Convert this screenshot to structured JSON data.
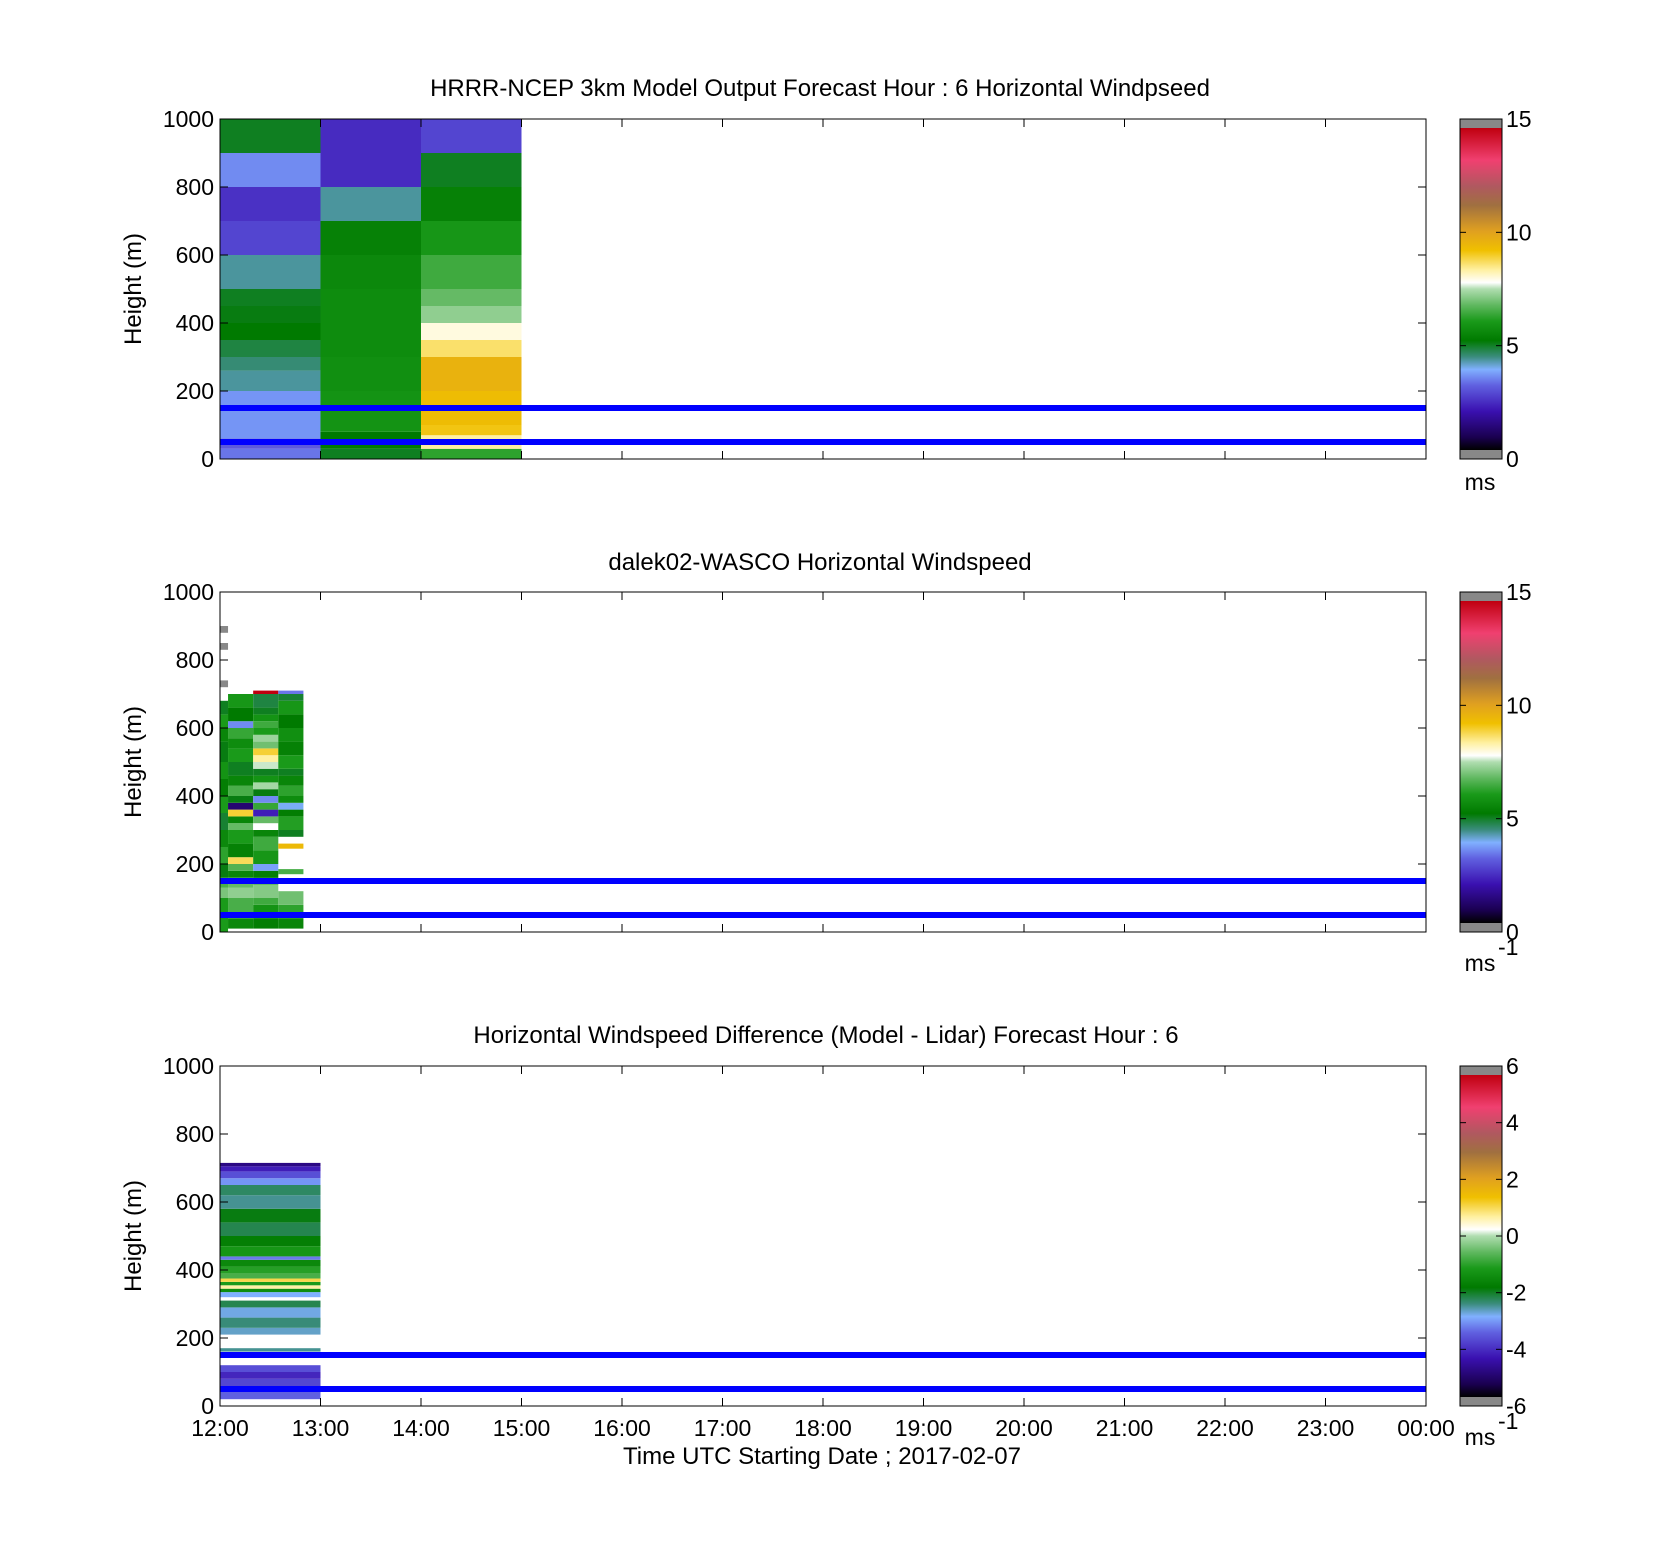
{
  "figure": {
    "xlabel": "Time UTC  Starting Date ; 2017-02-07",
    "x_ticks": [
      "12:00",
      "13:00",
      "14:00",
      "15:00",
      "16:00",
      "17:00",
      "18:00",
      "19:00",
      "20:00",
      "21:00",
      "22:00",
      "23:00",
      "00:00"
    ],
    "reference_lines_m": [
      50,
      150
    ],
    "reference_line_color": "#0000ff"
  },
  "chart_data": [
    {
      "type": "heatmap",
      "title": "HRRR-NCEP 3km Model Output   Forecast Hour : 6 Horizontal Windpseed",
      "ylabel": "Height (m)",
      "ylim": [
        0,
        1000
      ],
      "y_ticks": [
        0,
        200,
        400,
        600,
        800,
        1000
      ],
      "xlim_hours": [
        12,
        24
      ],
      "colorbar": {
        "ticks": [
          0,
          5,
          10,
          15
        ],
        "range": [
          0,
          15
        ],
        "unit": "ms",
        "unit_exp": ""
      },
      "columns": [
        {
          "x_start": 12,
          "x_end": 13,
          "cells": [
            {
              "y0": 0,
              "y1": 30,
              "value": 3.2
            },
            {
              "y0": 30,
              "y1": 60,
              "value": 2.9
            },
            {
              "y0": 60,
              "y1": 150,
              "value": 3.5
            },
            {
              "y0": 150,
              "y1": 200,
              "value": 3.5
            },
            {
              "y0": 200,
              "y1": 260,
              "value": 4.2
            },
            {
              "y0": 260,
              "y1": 300,
              "value": 4.4
            },
            {
              "y0": 300,
              "y1": 350,
              "value": 4.7
            },
            {
              "y0": 350,
              "y1": 400,
              "value": 5.1
            },
            {
              "y0": 400,
              "y1": 450,
              "value": 5.0
            },
            {
              "y0": 450,
              "y1": 500,
              "value": 4.9
            },
            {
              "y0": 500,
              "y1": 600,
              "value": 4.2
            },
            {
              "y0": 600,
              "y1": 700,
              "value": 2.6
            },
            {
              "y0": 700,
              "y1": 800,
              "value": 2.3
            },
            {
              "y0": 800,
              "y1": 900,
              "value": 3.4
            },
            {
              "y0": 900,
              "y1": 1000,
              "value": 4.9
            }
          ]
        },
        {
          "x_start": 13,
          "x_end": 14,
          "cells": [
            {
              "y0": 0,
              "y1": 30,
              "value": 4.9
            },
            {
              "y0": 30,
              "y1": 80,
              "value": 5.1
            },
            {
              "y0": 80,
              "y1": 200,
              "value": 5.8
            },
            {
              "y0": 200,
              "y1": 300,
              "value": 5.7
            },
            {
              "y0": 300,
              "y1": 500,
              "value": 5.6
            },
            {
              "y0": 500,
              "y1": 600,
              "value": 5.5
            },
            {
              "y0": 600,
              "y1": 700,
              "value": 5.3
            },
            {
              "y0": 700,
              "y1": 800,
              "value": 4.2
            },
            {
              "y0": 800,
              "y1": 1000,
              "value": 2.2
            }
          ]
        },
        {
          "x_start": 14,
          "x_end": 15,
          "cells": [
            {
              "y0": 0,
              "y1": 30,
              "value": 6.2
            },
            {
              "y0": 30,
              "y1": 70,
              "value": 8.4
            },
            {
              "y0": 70,
              "y1": 100,
              "value": 9.2
            },
            {
              "y0": 100,
              "y1": 200,
              "value": 9.4
            },
            {
              "y0": 200,
              "y1": 300,
              "value": 9.7
            },
            {
              "y0": 300,
              "y1": 350,
              "value": 8.7
            },
            {
              "y0": 350,
              "y1": 400,
              "value": 8.0
            },
            {
              "y0": 400,
              "y1": 450,
              "value": 7.2
            },
            {
              "y0": 450,
              "y1": 500,
              "value": 6.8
            },
            {
              "y0": 500,
              "y1": 600,
              "value": 6.4
            },
            {
              "y0": 600,
              "y1": 700,
              "value": 5.9
            },
            {
              "y0": 700,
              "y1": 800,
              "value": 5.3
            },
            {
              "y0": 800,
              "y1": 900,
              "value": 4.9
            },
            {
              "y0": 900,
              "y1": 1000,
              "value": 2.6
            }
          ]
        }
      ]
    },
    {
      "type": "heatmap",
      "title": "dalek02-WASCO  Horizontal Windspeed",
      "ylabel": "Height (m)",
      "ylim": [
        0,
        1000
      ],
      "y_ticks": [
        0,
        200,
        400,
        600,
        800,
        1000
      ],
      "xlim_hours": [
        12,
        24
      ],
      "colorbar": {
        "ticks": [
          0,
          5,
          10,
          15
        ],
        "range": [
          0,
          15
        ],
        "unit": "ms",
        "unit_exp": "-1"
      },
      "columns": [
        {
          "x_start": 12.0,
          "x_end": 12.08,
          "profile": [
            [
              0,
              100,
              6.0
            ],
            [
              100,
              130,
              7.0
            ],
            [
              130,
              160,
              6.5
            ],
            [
              160,
              200,
              5.0
            ],
            [
              200,
              250,
              6.2
            ],
            [
              250,
              300,
              5.5
            ],
            [
              300,
              350,
              4.8
            ],
            [
              350,
              400,
              6.0
            ],
            [
              400,
              450,
              5.2
            ],
            [
              450,
              500,
              5.8
            ],
            [
              500,
              560,
              5.0
            ],
            [
              560,
              600,
              5.4
            ],
            [
              600,
              640,
              6.0
            ],
            [
              640,
              680,
              4.9
            ],
            [
              720,
              740,
              16
            ],
            [
              830,
              850,
              16
            ],
            [
              880,
              900,
              16
            ]
          ]
        },
        {
          "x_start": 12.08,
          "x_end": 12.33,
          "profile": [
            [
              10,
              40,
              5.5
            ],
            [
              40,
              100,
              6.5
            ],
            [
              100,
              130,
              7.2
            ],
            [
              130,
              160,
              6.8
            ],
            [
              160,
              180,
              5.4
            ],
            [
              180,
              200,
              6.6
            ],
            [
              200,
              220,
              8.8
            ],
            [
              220,
              260,
              5.3
            ],
            [
              260,
              300,
              6.0
            ],
            [
              300,
              320,
              6.8
            ],
            [
              320,
              340,
              5.4
            ],
            [
              340,
              360,
              9.0
            ],
            [
              360,
              380,
              1.0
            ],
            [
              380,
              400,
              5.0
            ],
            [
              400,
              430,
              6.5
            ],
            [
              430,
              460,
              5.4
            ],
            [
              460,
              500,
              4.9
            ],
            [
              500,
              540,
              6.0
            ],
            [
              540,
              570,
              5.6
            ],
            [
              570,
              600,
              6.3
            ],
            [
              600,
              620,
              3.4
            ],
            [
              620,
              660,
              5.1
            ],
            [
              660,
              700,
              5.9
            ]
          ]
        },
        {
          "x_start": 12.33,
          "x_end": 12.58,
          "profile": [
            [
              10,
              40,
              5.2
            ],
            [
              40,
              80,
              5.8
            ],
            [
              80,
              100,
              6.4
            ],
            [
              100,
              140,
              7.1
            ],
            [
              140,
              160,
              6.0
            ],
            [
              160,
              180,
              5.2
            ],
            [
              180,
              200,
              3.6
            ],
            [
              200,
              240,
              5.9
            ],
            [
              240,
              280,
              6.4
            ],
            [
              280,
              300,
              5.4
            ],
            [
              300,
              320,
              7.8
            ],
            [
              320,
              340,
              6.8
            ],
            [
              340,
              360,
              2.0
            ],
            [
              360,
              380,
              6.3
            ],
            [
              380,
              400,
              3.4
            ],
            [
              400,
              420,
              5.0
            ],
            [
              420,
              440,
              7.4
            ],
            [
              440,
              460,
              5.8
            ],
            [
              460,
              480,
              4.9
            ],
            [
              480,
              500,
              7.6
            ],
            [
              500,
              520,
              8.4
            ],
            [
              520,
              540,
              9.0
            ],
            [
              540,
              560,
              6.9
            ],
            [
              560,
              580,
              7.3
            ],
            [
              580,
              600,
              6.0
            ],
            [
              600,
              620,
              6.4
            ],
            [
              620,
              640,
              5.8
            ],
            [
              640,
              660,
              4.9
            ],
            [
              660,
              700,
              4.7
            ],
            [
              700,
              710,
              15
            ]
          ]
        },
        {
          "x_start": 12.58,
          "x_end": 12.83,
          "profile": [
            [
              10,
              40,
              5.4
            ],
            [
              40,
              80,
              6.2
            ],
            [
              80,
              120,
              6.9
            ],
            [
              170,
              185,
              6.5
            ],
            [
              245,
              260,
              9.5
            ],
            [
              280,
              300,
              4.9
            ],
            [
              300,
              340,
              6.1
            ],
            [
              340,
              360,
              5.2
            ],
            [
              360,
              380,
              3.8
            ],
            [
              380,
              400,
              5.6
            ],
            [
              400,
              430,
              6.2
            ],
            [
              430,
              460,
              5.4
            ],
            [
              460,
              480,
              4.9
            ],
            [
              480,
              520,
              6.0
            ],
            [
              520,
              560,
              5.3
            ],
            [
              560,
              600,
              5.7
            ],
            [
              600,
              640,
              5.1
            ],
            [
              640,
              680,
              5.9
            ],
            [
              680,
              700,
              4.8
            ],
            [
              700,
              710,
              3.2
            ]
          ]
        }
      ]
    },
    {
      "type": "heatmap",
      "title": "Horizontal Windspeed Difference (Model - Lidar) Forecast Hour : 6",
      "ylabel": "Height (m)",
      "ylim": [
        0,
        1000
      ],
      "y_ticks": [
        0,
        200,
        400,
        600,
        800,
        1000
      ],
      "xlim_hours": [
        12,
        24
      ],
      "colorbar": {
        "ticks": [
          -6,
          -4,
          -2,
          0,
          2,
          4,
          6
        ],
        "range": [
          -6,
          6
        ],
        "unit": "ms",
        "unit_exp": "-1"
      },
      "columns": [
        {
          "x_start": 12,
          "x_end": 13,
          "profile": [
            [
              20,
              50,
              -3.6
            ],
            [
              50,
              80,
              -3.9
            ],
            [
              80,
              100,
              -4.3
            ],
            [
              100,
              120,
              -3.8
            ],
            [
              160,
              170,
              -2.6
            ],
            [
              210,
              230,
              -2.8
            ],
            [
              230,
              260,
              -2.5
            ],
            [
              260,
              290,
              -2.9
            ],
            [
              290,
              310,
              -2.3
            ],
            [
              320,
              335,
              -3.0
            ],
            [
              335,
              345,
              -1.5
            ],
            [
              345,
              355,
              0.7
            ],
            [
              355,
              365,
              -1.2
            ],
            [
              365,
              375,
              1.1
            ],
            [
              375,
              390,
              -0.8
            ],
            [
              390,
              410,
              -1.1
            ],
            [
              410,
              430,
              -1.6
            ],
            [
              430,
              440,
              -3.4
            ],
            [
              440,
              470,
              -1.3
            ],
            [
              470,
              500,
              -1.8
            ],
            [
              500,
              540,
              -2.3
            ],
            [
              540,
              580,
              -2.0
            ],
            [
              580,
              620,
              -2.6
            ],
            [
              620,
              650,
              -2.4
            ],
            [
              650,
              670,
              -3.2
            ],
            [
              670,
              690,
              -3.8
            ],
            [
              690,
              705,
              -4.4
            ],
            [
              705,
              715,
              -5.0
            ]
          ]
        }
      ]
    }
  ]
}
